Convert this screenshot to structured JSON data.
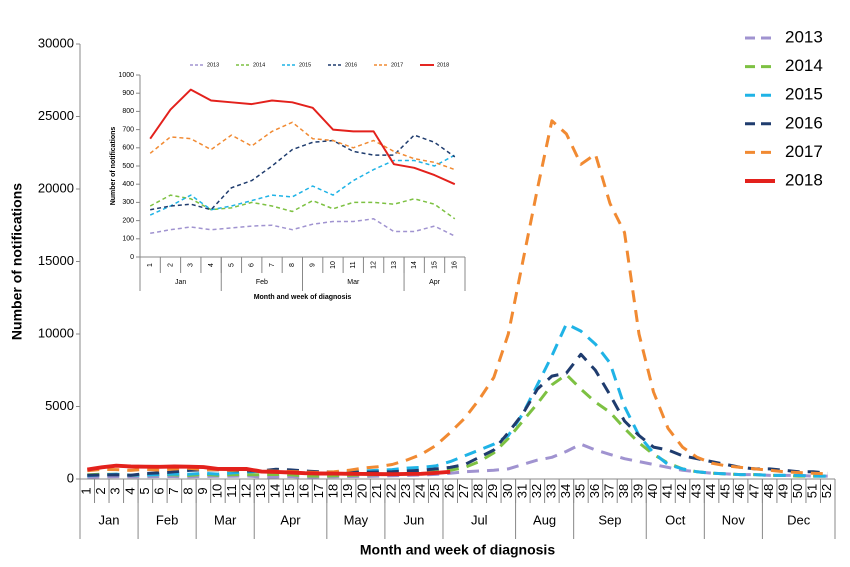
{
  "chart_data": [
    {
      "type": "line",
      "y_label": "Number of notifications",
      "x_label": "Month and week of diagnosis",
      "legend": "right",
      "categories": [
        1,
        2,
        3,
        4,
        5,
        6,
        7,
        8,
        9,
        10,
        11,
        12,
        13,
        14,
        15,
        16,
        17,
        18,
        19,
        20,
        21,
        22,
        23,
        24,
        25,
        26,
        27,
        28,
        29,
        30,
        31,
        32,
        33,
        34,
        35,
        36,
        37,
        38,
        39,
        40,
        41,
        42,
        43,
        44,
        45,
        46,
        47,
        48,
        49,
        50,
        51,
        52
      ],
      "months": [
        {
          "label": "Jan",
          "weeks": 4
        },
        {
          "label": "Feb",
          "weeks": 4
        },
        {
          "label": "Mar",
          "weeks": 4
        },
        {
          "label": "Apr",
          "weeks": 5
        },
        {
          "label": "May",
          "weeks": 4
        },
        {
          "label": "Jun",
          "weeks": 4
        },
        {
          "label": "Jul",
          "weeks": 5
        },
        {
          "label": "Aug",
          "weeks": 4
        },
        {
          "label": "Sep",
          "weeks": 5
        },
        {
          "label": "Oct",
          "weeks": 4
        },
        {
          "label": "Nov",
          "weeks": 4
        },
        {
          "label": "Dec",
          "weeks": 5
        }
      ],
      "ylim": [
        0,
        30000
      ],
      "yticks": [
        0,
        5000,
        10000,
        15000,
        20000,
        25000,
        30000
      ],
      "series": [
        {
          "name": "2013",
          "color": "#a093d0",
          "line_style": "dashed",
          "values": [
            130,
            150,
            165,
            150,
            160,
            170,
            175,
            150,
            180,
            195,
            195,
            210,
            140,
            140,
            170,
            115,
            150,
            160,
            170,
            180,
            200,
            220,
            250,
            280,
            320,
            400,
            500,
            550,
            600,
            700,
            1000,
            1300,
            1500,
            1900,
            2400,
            2000,
            1700,
            1400,
            1200,
            1000,
            800,
            600,
            500,
            400,
            350,
            300,
            300,
            250,
            250,
            250,
            200,
            200
          ]
        },
        {
          "name": "2014",
          "color": "#7dc142",
          "line_style": "dashed",
          "values": [
            280,
            340,
            320,
            260,
            270,
            300,
            280,
            250,
            310,
            265,
            300,
            300,
            290,
            320,
            290,
            210,
            200,
            220,
            250,
            280,
            300,
            330,
            380,
            450,
            500,
            600,
            800,
            1200,
            1800,
            2800,
            4000,
            5200,
            6500,
            7200,
            6200,
            5300,
            4600,
            3500,
            2500,
            1700,
            1100,
            700,
            500,
            400,
            350,
            300,
            300,
            250,
            250,
            200,
            200,
            200
          ]
        },
        {
          "name": "2015",
          "color": "#1fb3e6",
          "line_style": "dashed",
          "values": [
            230,
            280,
            340,
            260,
            280,
            310,
            340,
            330,
            390,
            340,
            420,
            480,
            530,
            530,
            500,
            560,
            400,
            450,
            500,
            550,
            600,
            650,
            750,
            800,
            900,
            1200,
            1600,
            2000,
            2400,
            3000,
            4500,
            6500,
            8500,
            10700,
            10200,
            9300,
            8000,
            5000,
            3000,
            1800,
            1000,
            700,
            500,
            400,
            350,
            300,
            300,
            250,
            250,
            250,
            200,
            200
          ]
        },
        {
          "name": "2016",
          "color": "#1f3c6e",
          "line_style": "dashed",
          "values": [
            260,
            280,
            290,
            260,
            380,
            420,
            500,
            590,
            630,
            640,
            580,
            560,
            560,
            670,
            630,
            550,
            500,
            480,
            470,
            460,
            480,
            500,
            550,
            600,
            700,
            800,
            1000,
            1500,
            2000,
            3200,
            4500,
            6200,
            7100,
            7300,
            8600,
            7500,
            5800,
            4000,
            3000,
            2200,
            2000,
            1600,
            1400,
            1200,
            1000,
            800,
            700,
            700,
            600,
            500,
            500,
            400
          ]
        },
        {
          "name": "2017",
          "color": "#f18a32",
          "line_style": "dashed",
          "values": [
            570,
            660,
            650,
            590,
            670,
            610,
            690,
            740,
            650,
            640,
            600,
            640,
            580,
            540,
            520,
            480,
            450,
            500,
            600,
            750,
            850,
            1000,
            1300,
            1700,
            2300,
            3200,
            4200,
            5500,
            7000,
            10000,
            15000,
            20000,
            24700,
            23800,
            21700,
            22400,
            19000,
            17000,
            10000,
            6000,
            3500,
            2200,
            1500,
            1100,
            900,
            800,
            700,
            600,
            500,
            450,
            400,
            350
          ]
        },
        {
          "name": "2018",
          "color": "#e3211c",
          "line_style": "solid",
          "values": [
            650,
            810,
            920,
            860,
            850,
            840,
            860,
            850,
            820,
            700,
            690,
            690,
            510,
            490,
            450,
            400,
            380,
            370,
            360,
            350,
            340,
            330,
            350,
            360,
            420,
            500,
            null,
            null,
            null,
            null,
            null,
            null,
            null,
            null,
            null,
            null,
            null,
            null,
            null,
            null,
            null,
            null,
            null,
            null,
            null,
            null,
            null,
            null,
            null,
            null,
            null,
            null
          ]
        }
      ]
    },
    {
      "type": "line",
      "y_label": "Number of notifications",
      "x_label": "Month and week of diagnosis",
      "legend": "top",
      "categories": [
        1,
        2,
        3,
        4,
        5,
        6,
        7,
        8,
        9,
        10,
        11,
        12,
        13,
        14,
        15,
        16
      ],
      "months": [
        {
          "label": "Jan",
          "weeks": 4
        },
        {
          "label": "Feb",
          "weeks": 4
        },
        {
          "label": "Mar",
          "weeks": 5
        },
        {
          "label": "Apr",
          "weeks": 3
        }
      ],
      "ylim": [
        0,
        1000
      ],
      "yticks": [
        0,
        100,
        200,
        300,
        400,
        500,
        600,
        700,
        800,
        900,
        1000
      ],
      "series": [
        {
          "name": "2013",
          "color": "#a093d0",
          "line_style": "dashed",
          "values": [
            130,
            150,
            165,
            150,
            160,
            170,
            175,
            150,
            180,
            195,
            195,
            210,
            140,
            140,
            170,
            115
          ]
        },
        {
          "name": "2014",
          "color": "#7dc142",
          "line_style": "dashed",
          "values": [
            280,
            340,
            320,
            260,
            270,
            300,
            280,
            250,
            310,
            265,
            300,
            300,
            290,
            320,
            290,
            210
          ]
        },
        {
          "name": "2015",
          "color": "#1fb3e6",
          "line_style": "dashed",
          "values": [
            230,
            280,
            340,
            260,
            280,
            310,
            340,
            330,
            390,
            340,
            420,
            480,
            530,
            530,
            500,
            560
          ]
        },
        {
          "name": "2016",
          "color": "#1f3c6e",
          "line_style": "dashed",
          "values": [
            260,
            280,
            290,
            260,
            380,
            420,
            500,
            590,
            630,
            640,
            580,
            560,
            560,
            670,
            630,
            550
          ]
        },
        {
          "name": "2017",
          "color": "#f18a32",
          "line_style": "dashed",
          "values": [
            570,
            660,
            650,
            590,
            670,
            610,
            690,
            740,
            650,
            640,
            600,
            640,
            580,
            540,
            520,
            480
          ]
        },
        {
          "name": "2018",
          "color": "#e3211c",
          "line_style": "solid",
          "values": [
            650,
            810,
            920,
            860,
            850,
            840,
            860,
            850,
            820,
            700,
            690,
            690,
            510,
            490,
            450,
            400
          ]
        }
      ]
    }
  ]
}
